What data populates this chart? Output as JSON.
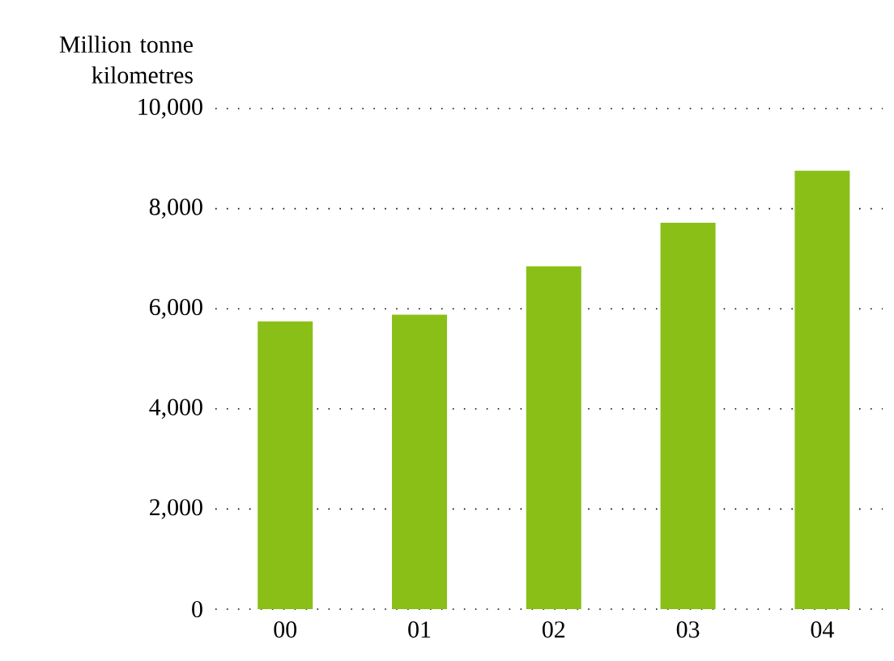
{
  "chart_data": {
    "type": "bar",
    "ylabel": "Million tonne kilometres",
    "categories": [
      "00",
      "01",
      "02",
      "03",
      "04"
    ],
    "values": [
      5750,
      5880,
      6850,
      7720,
      8760
    ],
    "color": "#8abf18",
    "ylim": [
      0,
      10000
    ],
    "yticks": [
      0,
      {
        "value": 2000,
        "label": "2,000"
      },
      {
        "value": 4000,
        "label": "4,000"
      },
      {
        "value": 6000,
        "label": "6,000"
      },
      {
        "value": 8000,
        "label": "8,000"
      },
      {
        "value": 10000,
        "label": "10,000"
      }
    ],
    "grid": "y"
  }
}
